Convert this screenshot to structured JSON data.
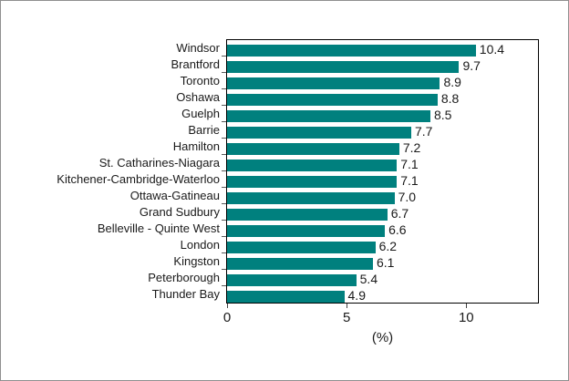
{
  "chart_data": {
    "type": "bar",
    "orientation": "horizontal",
    "title": "",
    "categories": [
      "Windsor",
      "Brantford",
      "Toronto",
      "Oshawa",
      "Guelph",
      "Barrie",
      "Hamilton",
      "St. Catharines-Niagara",
      "Kitchener-Cambridge-Waterloo",
      "Ottawa-Gatineau",
      "Grand Sudbury",
      "Belleville - Quinte West",
      "London",
      "Kingston",
      "Peterborough",
      "Thunder Bay"
    ],
    "values": [
      10.4,
      9.7,
      8.9,
      8.8,
      8.5,
      7.7,
      7.2,
      7.1,
      7.1,
      7.0,
      6.7,
      6.6,
      6.2,
      6.1,
      5.4,
      4.9
    ],
    "value_labels": [
      "10.4",
      "9.7",
      "8.9",
      "8.8",
      "8.5",
      "7.7",
      "7.2",
      "7.1",
      "7.1",
      "7.0",
      "6.7",
      "6.6",
      "6.2",
      "6.1",
      "5.4",
      "4.9"
    ],
    "xlabel": "(%)",
    "xlim": [
      0,
      13
    ],
    "xticks": [
      0,
      5,
      10
    ],
    "xtick_labels": [
      "0",
      "5",
      "10"
    ],
    "grid": false,
    "legend": null,
    "bar_color": "#00807E",
    "axis_color": "#000000",
    "frame_border_color": "#8F8F8F",
    "text_color": "#1A1A1A"
  }
}
